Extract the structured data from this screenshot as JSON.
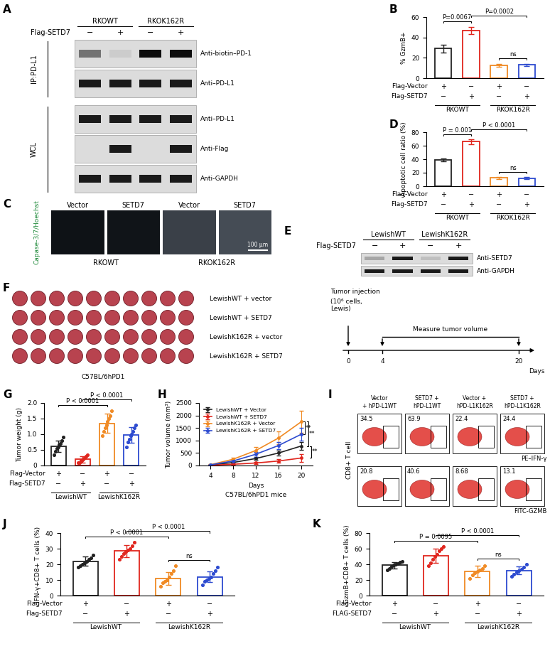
{
  "chart_data": [
    {
      "panel": "B",
      "type": "bar",
      "ylabel": "% GzmB+",
      "ylim": [
        0,
        60
      ],
      "yticks": [
        0,
        20,
        40,
        60
      ],
      "values": [
        29,
        47,
        12.5,
        13
      ],
      "error": [
        4,
        3.5,
        1.5,
        1.2
      ],
      "colors": [
        "#222222",
        "#e0261e",
        "#f08a24",
        "#2d4bd0"
      ],
      "rows": [
        {
          "label": "Flag-Vector",
          "marks": [
            "+",
            "−",
            "+",
            "−"
          ]
        },
        {
          "label": "Flag-SETD7",
          "marks": [
            "−",
            "+",
            "−",
            "+"
          ]
        }
      ],
      "groups": [
        {
          "label": "RKOWT",
          "bars": [
            0,
            1
          ]
        },
        {
          "label": "RKOK162R",
          "bars": [
            2,
            3
          ]
        }
      ],
      "comparisons": [
        {
          "text": "P=0.0067",
          "bars": [
            0,
            1
          ]
        },
        {
          "text": "P=0.0002",
          "bars": [
            1,
            3
          ]
        },
        {
          "text": "ns",
          "bars": [
            2,
            3
          ]
        }
      ]
    },
    {
      "panel": "D",
      "type": "bar",
      "ylabel": "Apoptotic cell ratio (%)",
      "ylim": [
        0,
        80
      ],
      "yticks": [
        0,
        20,
        40,
        60,
        80
      ],
      "values": [
        39,
        66,
        12.5,
        12
      ],
      "error": [
        2.5,
        4,
        1.5,
        1.2
      ],
      "colors": [
        "#222222",
        "#e0261e",
        "#f08a24",
        "#2d4bd0"
      ],
      "rows": [
        {
          "label": "Flag-Vector",
          "marks": [
            "+",
            "−",
            "+",
            "−"
          ]
        },
        {
          "label": "Flag-SETD7",
          "marks": [
            "−",
            "+",
            "−",
            "+"
          ]
        }
      ],
      "groups": [
        {
          "label": "RKOWT",
          "bars": [
            0,
            1
          ]
        },
        {
          "label": "RKOK162R",
          "bars": [
            2,
            3
          ]
        }
      ],
      "comparisons": [
        {
          "text": "P = 0.001",
          "bars": [
            0,
            1
          ]
        },
        {
          "text": "P < 0.0001",
          "bars": [
            1,
            3
          ]
        },
        {
          "text": "ns",
          "bars": [
            2,
            3
          ]
        }
      ]
    },
    {
      "panel": "G",
      "type": "bar",
      "ylabel": "Tumor weight (g)",
      "ylim": [
        0,
        2.0
      ],
      "yticks": [
        0,
        0.5,
        {
          "value": 1.0,
          "label": "1.0"
        },
        1.5,
        {
          "value": 2.0,
          "label": "2.0"
        }
      ],
      "values": [
        0.62,
        0.2,
        1.35,
        0.98
      ],
      "error": [
        0.18,
        0.1,
        0.3,
        0.25
      ],
      "points": [
        [
          0.35,
          0.45,
          0.55,
          0.6,
          0.65,
          0.7,
          0.8,
          0.9
        ],
        [
          0.08,
          0.1,
          0.15,
          0.18,
          0.2,
          0.25,
          0.3,
          0.35
        ],
        [
          0.95,
          1.1,
          1.2,
          1.3,
          1.4,
          1.5,
          1.6,
          1.75
        ],
        [
          0.6,
          0.75,
          0.85,
          0.95,
          1.0,
          1.1,
          1.2,
          1.3
        ]
      ],
      "colors": [
        "#222222",
        "#e0261e",
        "#f08a24",
        "#2d4bd0"
      ],
      "rows": [
        {
          "label": "Flag-Vector",
          "marks": [
            "+",
            "−",
            "+",
            "−"
          ]
        },
        {
          "label": "Flag-SETD7",
          "marks": [
            "−",
            "+",
            "−",
            "+"
          ]
        }
      ],
      "groups": [
        {
          "label": "LewishWT",
          "bars": [
            0,
            1
          ]
        },
        {
          "label": "LewishK162R",
          "bars": [
            2,
            3
          ]
        }
      ],
      "comparisons": [
        {
          "text": "P < 0.0001",
          "bars": [
            0,
            2
          ]
        },
        {
          "text": "P < 0.0001",
          "bars": [
            1,
            3
          ]
        }
      ]
    },
    {
      "panel": "H",
      "type": "line",
      "xlabel": "Days",
      "ylabel": "Tumor volume (mm³)",
      "note": "C57BL/6hPD1 mice",
      "x": [
        4,
        8,
        12,
        16,
        20
      ],
      "xlim": [
        2,
        22
      ],
      "xticks": [
        4,
        8,
        12,
        16,
        20
      ],
      "ylim": [
        0,
        2500
      ],
      "yticks": [
        0,
        500,
        1000,
        1500,
        2000,
        2500
      ],
      "legend": "upper left",
      "marker": "circle",
      "series": [
        {
          "name": "LewishWT + Vector",
          "color": "#222222",
          "values": [
            20,
            120,
            280,
            500,
            780
          ],
          "error": [
            10,
            30,
            60,
            100,
            150
          ]
        },
        {
          "name": "LewishWT + SETD7",
          "color": "#e0261e",
          "values": [
            10,
            50,
            100,
            180,
            300
          ],
          "error": [
            5,
            20,
            40,
            80,
            150
          ]
        },
        {
          "name": "LewishK162R + Vector",
          "color": "#f08a24",
          "values": [
            30,
            250,
            600,
            1100,
            1750
          ],
          "error": [
            15,
            60,
            150,
            250,
            450
          ]
        },
        {
          "name": "LewishK162R + SETD7",
          "color": "#2d4bd0",
          "values": [
            25,
            180,
            450,
            800,
            1250
          ],
          "error": [
            10,
            50,
            100,
            150,
            250
          ]
        }
      ],
      "comparisons": [
        {
          "text": "**",
          "series": [
            2,
            3
          ]
        },
        {
          "text": "**",
          "series": [
            0,
            2
          ]
        },
        {
          "text": "**",
          "series": [
            0,
            1
          ]
        }
      ]
    },
    {
      "panel": "J",
      "type": "bar",
      "ylabel": "IFN-γ+CD8+ T cells (%)",
      "ylim": [
        0,
        40
      ],
      "yticks": [
        0,
        10,
        20,
        30,
        40
      ],
      "values": [
        22,
        28.5,
        11,
        12
      ],
      "error": [
        3,
        4,
        4,
        3.5
      ],
      "points": [
        [
          18,
          19,
          20,
          21,
          22,
          23,
          24,
          26
        ],
        [
          23,
          25,
          27,
          28,
          29,
          30,
          32,
          34
        ],
        [
          6,
          8,
          9,
          10,
          12,
          14,
          16,
          19
        ],
        [
          7,
          9,
          10,
          11,
          12,
          14,
          16,
          18
        ]
      ],
      "colors": [
        "#222222",
        "#e0261e",
        "#f08a24",
        "#2d4bd0"
      ],
      "rows": [
        {
          "label": "Flag-Vector",
          "marks": [
            "+",
            "−",
            "+",
            "−"
          ]
        },
        {
          "label": "Flag-SETD7",
          "marks": [
            "−",
            "+",
            "−",
            "+"
          ]
        }
      ],
      "groups": [
        {
          "label": "LewishWT",
          "bars": [
            0,
            1
          ]
        },
        {
          "label": "LewishK162R",
          "bars": [
            2,
            3
          ]
        }
      ],
      "comparisons": [
        {
          "text": "P < 0.0001",
          "bars": [
            0,
            2
          ]
        },
        {
          "text": "P < 0.0001",
          "bars": [
            1,
            3
          ]
        },
        {
          "text": "ns",
          "bars": [
            2,
            3
          ]
        }
      ]
    },
    {
      "panel": "K",
      "type": "bar",
      "ylabel": "GzmB+CD8+ T cells (%)",
      "ylim": [
        0,
        80
      ],
      "yticks": [
        0,
        20,
        40,
        60,
        80
      ],
      "values": [
        39,
        51,
        31,
        32
      ],
      "error": [
        4,
        9,
        7,
        5
      ],
      "points": [
        [
          33,
          35,
          37,
          39,
          40,
          41,
          43,
          44
        ],
        [
          38,
          42,
          46,
          50,
          53,
          57,
          60,
          63
        ],
        [
          22,
          26,
          29,
          31,
          33,
          35,
          38
        ],
        [
          25,
          27,
          30,
          32,
          34,
          36,
          40
        ]
      ],
      "colors": [
        "#222222",
        "#e0261e",
        "#f08a24",
        "#2d4bd0"
      ],
      "rows": [
        {
          "label": "Flag-Vector",
          "marks": [
            "+",
            "−",
            "+",
            "−"
          ]
        },
        {
          "label": "FLAG-SETD7",
          "marks": [
            "−",
            "+",
            "−",
            "+"
          ]
        }
      ],
      "groups": [
        {
          "label": "LewishWT",
          "bars": [
            0,
            1
          ]
        },
        {
          "label": "LewishK162R",
          "bars": [
            2,
            3
          ]
        }
      ],
      "comparisons": [
        {
          "text": "P = 0.0095",
          "bars": [
            0,
            2
          ]
        },
        {
          "text": "P < 0.0001",
          "bars": [
            1,
            3
          ]
        },
        {
          "text": "ns",
          "bars": [
            2,
            3
          ]
        }
      ]
    }
  ],
  "blots": [
    {
      "panel": "A",
      "groups": [
        "RKOWT",
        "RKOK162R"
      ],
      "treatment": "Flag-SETD7",
      "marks": [
        "−",
        "+",
        "−",
        "+"
      ],
      "sections": [
        {
          "label": "IP:PD-L1",
          "rows": [
            "Anti-biotin–PD-1",
            "Anti–PD-L1"
          ]
        },
        {
          "label": "WCL",
          "rows": [
            "Anti–PD-L1",
            "Anti-Flag",
            "Anti-GAPDH"
          ]
        }
      ]
    },
    {
      "panel": "E",
      "groups": [
        "LewishWT",
        "LewishK162R"
      ],
      "treatment": "Flag-SETD7",
      "marks": [
        "−",
        "+",
        "−",
        "+"
      ],
      "sections": [
        {
          "rows": [
            "Anti-SETD7",
            "Anti-GAPDH"
          ]
        }
      ]
    }
  ],
  "images": {
    "panel": "C",
    "columns": [
      "Vector",
      "SETD7",
      "Vector",
      "SETD7"
    ],
    "groups": [
      "RKOWT",
      "RKOK162R"
    ],
    "stain": "Capase-3/7/Hoechst",
    "scale_bar": "100 μm"
  },
  "tumors": {
    "panel": "F",
    "rows": [
      "LewishWT + vector",
      "LewishWT + SETD7",
      "LewishK162R + vector",
      "LewishK162R + SETD7"
    ],
    "mouse": "C57BL/6hPD1",
    "schedule": {
      "injection": "Tumor injection",
      "detail": "(10⁶ cells,\nLewis)",
      "measure": "Measure tumor volume",
      "days": [
        0,
        4,
        20
      ],
      "unit": "Days"
    }
  },
  "flow": {
    "panel": "I",
    "ylabel": "CD8+ T cell",
    "columns": [
      "Vector\n+ hPD-L1WT",
      "SETD7 +\nhPD-L1WT",
      "Vector +\nhPD-L1K162R",
      "SETD7 +\nhPD-L1K162R"
    ],
    "rows": [
      {
        "channel": "PE–IFN-γ",
        "values": [
          34.5,
          63.9,
          22.4,
          24.4
        ]
      },
      {
        "channel": "FITC-GZMB",
        "values": [
          20.8,
          40.6,
          8.68,
          13.1
        ]
      }
    ]
  }
}
